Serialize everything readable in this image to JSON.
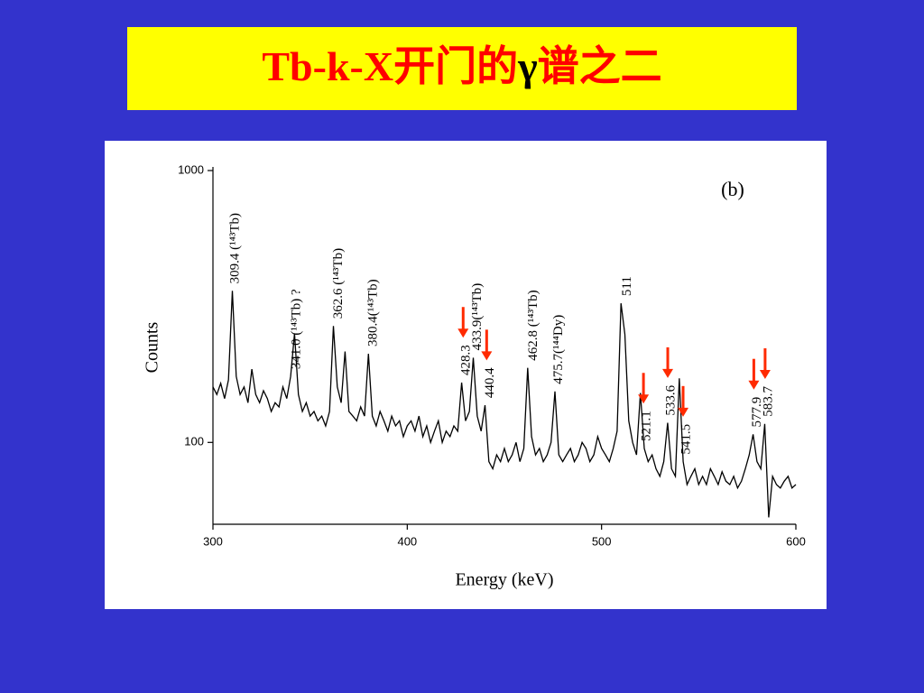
{
  "slide_title": [
    "Tb-k-X开门的",
    "γ",
    "谱之二"
  ],
  "chart_data": {
    "type": "line",
    "panel_label": "(b)",
    "xlabel": "Energy (keV)",
    "ylabel": "Counts",
    "yscale": "log",
    "color": "#000000",
    "arrow_color": "#ff2a00",
    "xlim": [
      300,
      600
    ],
    "xticks": [
      300,
      400,
      500,
      600
    ],
    "ylim": [
      50,
      1000
    ],
    "yticks": [
      100,
      1000
    ],
    "x": [
      300,
      302,
      304,
      306,
      308,
      310,
      312,
      314,
      316,
      318,
      320,
      322,
      324,
      326,
      328,
      330,
      332,
      334,
      336,
      338,
      340,
      342,
      344,
      346,
      348,
      350,
      352,
      354,
      356,
      358,
      360,
      362,
      364,
      366,
      368,
      370,
      372,
      374,
      376,
      378,
      380,
      382,
      384,
      386,
      388,
      390,
      392,
      394,
      396,
      398,
      400,
      402,
      404,
      406,
      408,
      410,
      412,
      414,
      416,
      418,
      420,
      422,
      424,
      426,
      428,
      430,
      432,
      434,
      436,
      438,
      440,
      442,
      444,
      446,
      448,
      450,
      452,
      454,
      456,
      458,
      460,
      462,
      464,
      466,
      468,
      470,
      472,
      474,
      476,
      478,
      480,
      482,
      484,
      486,
      488,
      490,
      492,
      494,
      496,
      498,
      500,
      502,
      504,
      506,
      508,
      510,
      512,
      514,
      516,
      518,
      520,
      522,
      524,
      526,
      528,
      530,
      532,
      534,
      536,
      538,
      540,
      542,
      544,
      546,
      548,
      550,
      552,
      554,
      556,
      558,
      560,
      562,
      564,
      566,
      568,
      570,
      572,
      574,
      576,
      578,
      580,
      582,
      584,
      586,
      588,
      590,
      592,
      594,
      596,
      598,
      600
    ],
    "values": [
      160,
      150,
      165,
      145,
      170,
      361,
      175,
      150,
      160,
      140,
      186,
      150,
      140,
      155,
      145,
      130,
      140,
      135,
      160,
      145,
      175,
      252,
      150,
      130,
      140,
      125,
      130,
      120,
      125,
      115,
      130,
      268,
      160,
      140,
      216,
      130,
      125,
      120,
      135,
      125,
      212,
      125,
      115,
      130,
      120,
      110,
      125,
      115,
      120,
      105,
      115,
      120,
      110,
      125,
      105,
      115,
      100,
      110,
      120,
      100,
      110,
      105,
      115,
      110,
      166,
      120,
      130,
      205,
      125,
      110,
      137,
      85,
      80,
      90,
      85,
      95,
      85,
      90,
      100,
      85,
      95,
      188,
      105,
      90,
      95,
      85,
      90,
      100,
      154,
      90,
      85,
      90,
      95,
      85,
      90,
      100,
      95,
      85,
      90,
      105,
      95,
      90,
      85,
      95,
      110,
      325,
      250,
      120,
      100,
      90,
      152,
      95,
      85,
      90,
      80,
      75,
      85,
      118,
      80,
      75,
      172,
      85,
      70,
      75,
      80,
      70,
      75,
      70,
      80,
      75,
      70,
      78,
      72,
      70,
      75,
      68,
      72,
      80,
      90,
      107,
      85,
      80,
      117,
      53,
      75,
      70,
      68,
      72,
      75,
      68,
      70
    ],
    "annotations": [
      {
        "text": "309.4 (¹⁴³Tb)",
        "x": 309.4,
        "arrow": false
      },
      {
        "text": "341.0 (¹⁴³Tb) ?",
        "x": 341.0,
        "arrow": false
      },
      {
        "text": "362.6 (¹⁴³Tb)",
        "x": 362.6,
        "arrow": false
      },
      {
        "text": "380.4(¹⁴³Tb)",
        "x": 380.4,
        "arrow": false
      },
      {
        "text": "428.3",
        "x": 428.3,
        "arrow": true
      },
      {
        "text": "433.9(¹⁴³Tb)",
        "x": 433.9,
        "arrow": false
      },
      {
        "text": "440.4",
        "x": 440.4,
        "arrow": true
      },
      {
        "text": "462.8 (¹⁴³Tb)",
        "x": 462.8,
        "arrow": false
      },
      {
        "text": "475.7(¹⁴⁴Dy)",
        "x": 475.7,
        "arrow": false
      },
      {
        "text": "511",
        "x": 511,
        "arrow": false
      },
      {
        "text": "521.1",
        "x": 521.1,
        "arrow": true
      },
      {
        "text": "533.6",
        "x": 533.6,
        "arrow": true
      },
      {
        "text": "541.5",
        "x": 541.5,
        "arrow": true
      },
      {
        "text": "577.9",
        "x": 577.9,
        "arrow": true
      },
      {
        "text": "583.7",
        "x": 583.7,
        "arrow": true
      }
    ]
  }
}
